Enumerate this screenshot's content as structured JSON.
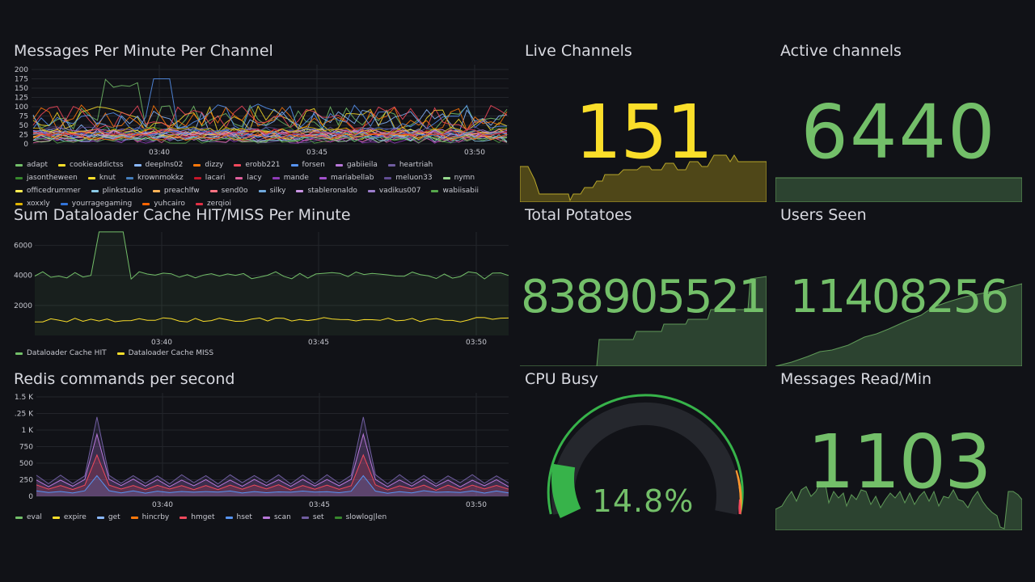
{
  "colors": {
    "background": "#111217",
    "grid": "#23252b",
    "green": "#73bf69",
    "yellow": "#fade2a",
    "gauge_green": "#37b34a",
    "gauge_orange": "#ff9830",
    "gauge_red": "#f2495c"
  },
  "panels": {
    "messages_per_minute": {
      "title": "Messages Per Minute Per Channel",
      "y_ticks": [
        "200",
        "175",
        "150",
        "125",
        "100",
        "75",
        "50",
        "25",
        "0"
      ],
      "x_ticks": [
        "03:40",
        "03:45",
        "03:50"
      ],
      "legend": [
        {
          "label": "adapt",
          "color": "#73bf69"
        },
        {
          "label": "cookieaddictss",
          "color": "#fade2a"
        },
        {
          "label": "deeplns02",
          "color": "#8ab8ff"
        },
        {
          "label": "dizzy",
          "color": "#ff780a"
        },
        {
          "label": "erobb221",
          "color": "#f2495c"
        },
        {
          "label": "forsen",
          "color": "#5794f2"
        },
        {
          "label": "gabiieila",
          "color": "#b877d9"
        },
        {
          "label": "heartriah",
          "color": "#705da0"
        },
        {
          "label": "jasontheween",
          "color": "#37872d"
        },
        {
          "label": "knut",
          "color": "#fade2a"
        },
        {
          "label": "krownmokkz",
          "color": "#447ebc"
        },
        {
          "label": "lacari",
          "color": "#c4162a"
        },
        {
          "label": "lacy",
          "color": "#e05f9c"
        },
        {
          "label": "mande",
          "color": "#8f3bb8"
        },
        {
          "label": "mariabellab",
          "color": "#a352cc"
        },
        {
          "label": "meluon33",
          "color": "#614d93"
        },
        {
          "label": "nymn",
          "color": "#96d98d"
        },
        {
          "label": "officedrummer",
          "color": "#ffee52"
        },
        {
          "label": "plinkstudio",
          "color": "#8ac9e6"
        },
        {
          "label": "preachlfw",
          "color": "#ffb357"
        },
        {
          "label": "send0o",
          "color": "#ff7383"
        },
        {
          "label": "silky",
          "color": "#6fa8dc"
        },
        {
          "label": "stableronaldo",
          "color": "#ca95e5"
        },
        {
          "label": "vadikus007",
          "color": "#9c7dcc"
        },
        {
          "label": "wabiisabii",
          "color": "#56a64b"
        },
        {
          "label": "xoxxly",
          "color": "#e0b400"
        },
        {
          "label": "yourragegaming",
          "color": "#3274d9"
        },
        {
          "label": "yuhcairo",
          "color": "#fa6400"
        },
        {
          "label": "zerqioi",
          "color": "#e02f44"
        }
      ]
    },
    "dataloader_cache": {
      "title": "Sum Dataloader Cache HIT/MISS Per Minute",
      "y_ticks": [
        "6000",
        "4000",
        "2000"
      ],
      "x_ticks": [
        "03:40",
        "03:45",
        "03:50"
      ],
      "legend": [
        {
          "label": "Dataloader Cache HIT",
          "color": "#73bf69"
        },
        {
          "label": "Dataloader Cache MISS",
          "color": "#fade2a"
        }
      ]
    },
    "redis_commands": {
      "title": "Redis commands per second",
      "y_ticks": [
        "1.5 K",
        "1.25 K",
        "1 K",
        "750",
        "500",
        "250",
        "0"
      ],
      "x_ticks": [
        "03:40",
        "03:45",
        "03:50"
      ],
      "legend": [
        {
          "label": "eval",
          "color": "#73bf69"
        },
        {
          "label": "expire",
          "color": "#fade2a"
        },
        {
          "label": "get",
          "color": "#8ab8ff"
        },
        {
          "label": "hincrby",
          "color": "#ff780a"
        },
        {
          "label": "hmget",
          "color": "#f2495c"
        },
        {
          "label": "hset",
          "color": "#5794f2"
        },
        {
          "label": "scan",
          "color": "#b877d9"
        },
        {
          "label": "set",
          "color": "#705da0"
        },
        {
          "label": "slowlog|len",
          "color": "#37872d"
        }
      ]
    },
    "live_channels": {
      "title": "Live Channels",
      "value": "151",
      "color": "#fade2a"
    },
    "active_channels": {
      "title": "Active channels",
      "value": "6440",
      "color": "#73bf69"
    },
    "total_potatoes": {
      "title": "Total Potatoes",
      "value": "838905521",
      "color": "#73bf69"
    },
    "users_seen": {
      "title": "Users Seen",
      "value": "11408256",
      "color": "#73bf69"
    },
    "cpu_busy": {
      "title": "CPU Busy",
      "value": "14.8%",
      "percent": 14.8,
      "color": "#73bf69"
    },
    "messages_read": {
      "title": "Messages Read/Min",
      "value": "1103",
      "color": "#73bf69"
    }
  }
}
